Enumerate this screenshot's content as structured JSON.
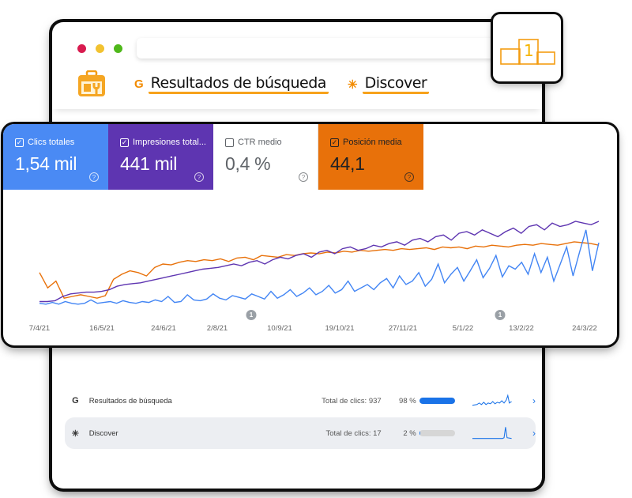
{
  "browser": {
    "traffic_lights": [
      "#d81b4f",
      "#f2c230",
      "#4fb81a"
    ],
    "url": "",
    "nav_tabs": [
      {
        "icon": "G",
        "icon_name": "google-icon",
        "label": "Resultados de búsqueda"
      },
      {
        "icon": "✳",
        "icon_name": "discover-icon",
        "label": "Discover"
      }
    ]
  },
  "badge": {
    "podium_number": "1"
  },
  "metrics": [
    {
      "label": "Clics totales",
      "value": "1,54 mil",
      "checked": true,
      "bg": "#4a8af4",
      "fg": "#ffffff"
    },
    {
      "label": "Impresiones total...",
      "value": "441 mil",
      "checked": true,
      "bg": "#5e35b1",
      "fg": "#ffffff"
    },
    {
      "label": "CTR medio",
      "value": "0,4 %",
      "checked": false,
      "bg": "#ffffff",
      "fg": "#5f6368"
    },
    {
      "label": "Posición media",
      "value": "44,1",
      "checked": true,
      "bg": "#e8710a",
      "fg": "#202124"
    }
  ],
  "chart_data": {
    "type": "line",
    "title": "",
    "xlabel": "",
    "ylabel": "",
    "x_ticks": [
      "7/4/21",
      "16/5/21",
      "24/6/21",
      "2/8/21",
      "10/9/21",
      "19/10/21",
      "27/11/21",
      "5/1/22",
      "13/2/22",
      "24/3/22"
    ],
    "annotations": [
      {
        "label": "1",
        "x": "≈27/8/21"
      },
      {
        "label": "1",
        "x": "≈29/1/22"
      }
    ],
    "grid": false,
    "legend": "metric cards above chart",
    "series": [
      {
        "name": "Clics totales",
        "color": "#4285f4",
        "values": [
          4,
          3,
          5,
          3,
          6,
          4,
          3,
          4,
          8,
          4,
          5,
          6,
          4,
          7,
          5,
          4,
          6,
          5,
          8,
          6,
          12,
          5,
          6,
          14,
          8,
          7,
          9,
          15,
          10,
          8,
          13,
          11,
          9,
          15,
          12,
          9,
          18,
          10,
          14,
          20,
          12,
          16,
          22,
          14,
          18,
          25,
          16,
          20,
          30,
          18,
          22,
          26,
          20,
          28,
          33,
          22,
          36,
          26,
          30,
          40,
          24,
          32,
          50,
          28,
          38,
          46,
          30,
          42,
          55,
          34,
          45,
          60,
          35,
          48,
          44,
          52,
          38,
          62,
          40,
          58,
          30,
          50,
          70,
          36,
          64,
          90,
          42,
          75
        ]
      },
      {
        "name": "Impresiones totales",
        "color": "#5e35b1",
        "values": [
          6,
          6,
          7,
          12,
          15,
          16,
          17,
          17,
          18,
          20,
          24,
          26,
          27,
          28,
          30,
          32,
          34,
          36,
          38,
          40,
          42,
          44,
          45,
          46,
          48,
          50,
          48,
          52,
          54,
          50,
          55,
          58,
          56,
          60,
          62,
          58,
          64,
          66,
          62,
          68,
          70,
          66,
          68,
          72,
          70,
          74,
          76,
          72,
          78,
          80,
          76,
          82,
          84,
          78,
          86,
          88,
          84,
          90,
          86,
          82,
          88,
          92,
          86,
          94,
          96,
          90,
          98,
          94,
          96,
          100,
          98,
          96,
          100
        ]
      },
      {
        "name": "Posición media",
        "color": "#e8710a",
        "values": [
          40,
          22,
          30,
          10,
          12,
          14,
          12,
          10,
          13,
          32,
          38,
          42,
          40,
          36,
          46,
          50,
          49,
          52,
          54,
          53,
          55,
          54,
          56,
          53,
          57,
          58,
          55,
          60,
          59,
          58,
          61,
          60,
          62,
          63,
          62,
          64,
          63,
          65,
          64,
          66,
          65,
          66,
          67,
          66,
          68,
          67,
          68,
          69,
          67,
          70,
          69,
          70,
          68,
          71,
          70,
          72,
          71,
          70,
          72,
          73,
          72,
          74,
          73,
          72,
          74,
          76,
          75,
          74,
          72
        ]
      }
    ]
  },
  "sources": [
    {
      "icon": "G",
      "icon_name": "google-icon",
      "name": "Resultados de búsqueda",
      "total": "Total de clics: 937",
      "pct": "98 %",
      "pct_value": 98,
      "selected": false
    },
    {
      "icon": "✳",
      "icon_name": "discover-icon",
      "name": "Discover",
      "total": "Total de clics: 17",
      "pct": "2 %",
      "pct_value": 2,
      "selected": true
    }
  ],
  "help_icon": "?",
  "chevron_icon": "›"
}
